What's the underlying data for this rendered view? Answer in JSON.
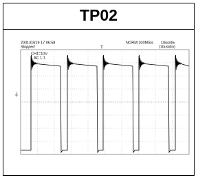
{
  "header": {
    "title": "TP02"
  },
  "scope": {
    "timestamp": "2001/03/19 17:06:58",
    "status": "Stopped",
    "channel": "CH1=10V",
    "coupling": "AC 1:1",
    "sample_rate": "NORM:100MS/s",
    "timebase": "10us/div",
    "timebase_setting": "(10us/div)"
  }
}
